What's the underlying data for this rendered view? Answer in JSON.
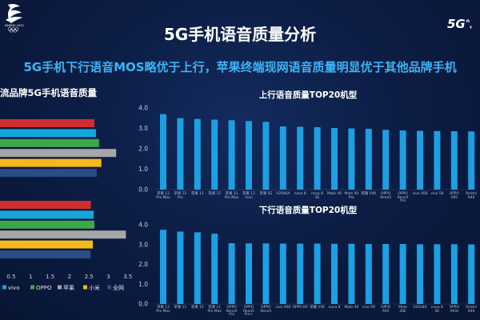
{
  "logo_left": {
    "icon": "beijing-2022-emblem",
    "text": "BEIJING 2022"
  },
  "logo_right": {
    "icon": "5g-logo",
    "main": "5G",
    "sup": "n",
    "sub": "+"
  },
  "title": "5G手机语音质量分析",
  "subtitle": "5G手机下行语音MOS略优于上行，苹果终端现网语音质量明显优于其他品牌手机",
  "colors": {
    "background": "#0c1d44",
    "title": "#ffffff",
    "subtitle": "#3cb4f6"
  },
  "chart_data": [
    {
      "type": "bar",
      "orientation": "horizontal",
      "title": "流品牌5G手机语音质量",
      "series": [
        {
          "values": [
            2.64,
            2.55
          ],
          "color": "#cf2e2e"
        },
        {
          "name": "vivo",
          "values": [
            2.68,
            2.62
          ],
          "color": "#14a7dc"
        },
        {
          "name": "OPPO",
          "values": [
            2.76,
            2.64
          ],
          "color": "#3da84b"
        },
        {
          "name": "苹果",
          "values": [
            3.2,
            3.45
          ],
          "color": "#a6a6a6"
        },
        {
          "name": "小米",
          "values": [
            2.82,
            2.6
          ],
          "color": "#f4b91b"
        },
        {
          "name": "全网",
          "values": [
            2.7,
            2.54
          ],
          "color": "#2a4d86"
        }
      ],
      "xticks": [
        "0.5",
        "1",
        "1.5",
        "2",
        "2.5",
        "3",
        "3.5"
      ],
      "xlim": [
        0,
        3.5
      ],
      "grid": false,
      "legend": "bottom"
    },
    {
      "type": "bar",
      "title": "上行语音质量TOP20机型",
      "categories": [
        "苹果 12 Pro Max",
        "苹果 12 Pro",
        "苹果 11",
        "苹果 12",
        "苹果 11 Pro Max",
        "苹果 12 mini",
        "苹果 SE",
        "V2046A",
        "nova 8",
        "nova 8 SE",
        "Mate 40",
        "Mate 40 Pro",
        "荣耀 V40",
        "OPPO Reno5",
        "OPPO Reno5 Pro",
        "vivo X60",
        "vivo S9",
        "OPPO A95",
        "Redmi K40"
      ],
      "values": [
        3.7,
        3.5,
        3.46,
        3.43,
        3.4,
        3.36,
        3.32,
        3.1,
        3.08,
        3.06,
        3.02,
        3.0,
        2.98,
        2.93,
        2.9,
        2.88,
        2.87,
        2.86,
        2.85
      ],
      "yticks": [
        "4.0",
        "3.0",
        "2.0",
        "1.0",
        "0.0"
      ],
      "ylim": [
        0,
        4
      ],
      "grid": false,
      "color": "#1d9fe3"
    },
    {
      "type": "bar",
      "title": "下行语音质量TOP20机型",
      "categories": [
        "苹果 12 Pro Max",
        "苹果 11",
        "苹果 12",
        "苹果 11 Pro Max",
        "OPPO Reno5 Pro",
        "OPPO Reno5 Pro+",
        "OPPO Reno5",
        "vivo X60",
        "OPPO K9",
        "荣耀 V40",
        "nova 8",
        "Mate 40",
        "vivo S9",
        "OPPO A95",
        "Mate 40E",
        "V2034A",
        "nova 8 SE",
        "OPPO A93s",
        "Redmi K40"
      ],
      "values": [
        3.75,
        3.66,
        3.62,
        3.55,
        3.07,
        3.06,
        3.06,
        3.05,
        3.05,
        3.05,
        3.04,
        3.04,
        3.03,
        3.03,
        3.03,
        3.02,
        3.02,
        3.02,
        3.01
      ],
      "yticks": [
        "4.0",
        "3.0",
        "2.0",
        "1.0",
        "0.0"
      ],
      "ylim": [
        0,
        4
      ],
      "grid": false,
      "color": "#1d9fe3"
    }
  ]
}
